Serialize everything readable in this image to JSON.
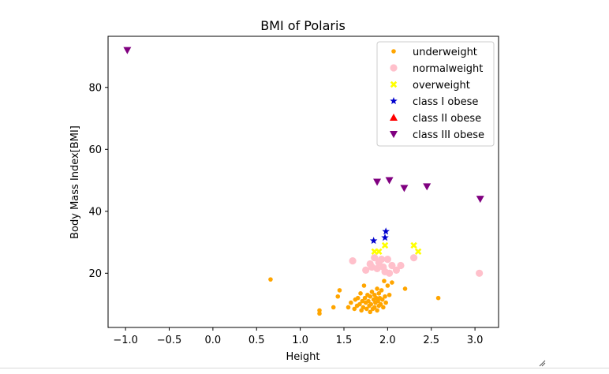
{
  "chart_data": {
    "type": "scatter",
    "title": "BMI of Polaris",
    "xlabel": "Height",
    "ylabel": "Body Mass Index[BMI]",
    "xlim": [
      -1.2,
      3.27
    ],
    "ylim": [
      2.5,
      96.5
    ],
    "xticks": [
      "−1.0",
      "−0.5",
      "0.0",
      "0.5",
      "1.0",
      "1.5",
      "2.0",
      "2.5",
      "3.0"
    ],
    "xtick_values": [
      -1.0,
      -0.5,
      0.0,
      0.5,
      1.0,
      1.5,
      2.0,
      2.5,
      3.0
    ],
    "yticks": [
      "20",
      "40",
      "60",
      "80"
    ],
    "ytick_values": [
      20,
      40,
      60,
      80
    ],
    "grid": false,
    "legend_position": "top-right",
    "series": [
      {
        "name": "underweight",
        "marker": "dot",
        "color": "#ffa500",
        "points": [
          [
            0.66,
            18.0
          ],
          [
            1.22,
            8.0
          ],
          [
            1.22,
            7.0
          ],
          [
            1.38,
            9.0
          ],
          [
            1.43,
            12.5
          ],
          [
            1.45,
            14.5
          ],
          [
            1.55,
            9.0
          ],
          [
            1.58,
            10.5
          ],
          [
            1.62,
            8.5
          ],
          [
            1.63,
            11.5
          ],
          [
            1.65,
            9.5
          ],
          [
            1.66,
            12.0
          ],
          [
            1.68,
            10.0
          ],
          [
            1.69,
            13.5
          ],
          [
            1.7,
            8.0
          ],
          [
            1.71,
            11.0
          ],
          [
            1.72,
            9.0
          ],
          [
            1.73,
            16.0
          ],
          [
            1.74,
            12.0
          ],
          [
            1.75,
            10.5
          ],
          [
            1.76,
            8.5
          ],
          [
            1.77,
            13.0
          ],
          [
            1.78,
            11.0
          ],
          [
            1.79,
            9.5
          ],
          [
            1.8,
            7.5
          ],
          [
            1.8,
            12.5
          ],
          [
            1.81,
            10.0
          ],
          [
            1.82,
            14.0
          ],
          [
            1.83,
            8.5
          ],
          [
            1.84,
            11.5
          ],
          [
            1.85,
            9.0
          ],
          [
            1.85,
            13.0
          ],
          [
            1.86,
            10.5
          ],
          [
            1.87,
            12.0
          ],
          [
            1.88,
            8.0
          ],
          [
            1.88,
            15.0
          ],
          [
            1.89,
            11.0
          ],
          [
            1.9,
            9.5
          ],
          [
            1.9,
            13.5
          ],
          [
            1.91,
            12.0
          ],
          [
            1.92,
            10.0
          ],
          [
            1.93,
            14.5
          ],
          [
            1.94,
            11.5
          ],
          [
            1.95,
            9.0
          ],
          [
            1.96,
            17.5
          ],
          [
            1.97,
            12.5
          ],
          [
            1.98,
            10.5
          ],
          [
            2.0,
            16.0
          ],
          [
            2.02,
            13.0
          ],
          [
            2.05,
            17.0
          ],
          [
            2.2,
            15.0
          ],
          [
            2.58,
            12.0
          ]
        ]
      },
      {
        "name": "normalweight",
        "marker": "circle",
        "color": "#ffc0cb",
        "points": [
          [
            1.6,
            24.0
          ],
          [
            1.75,
            21.0
          ],
          [
            1.8,
            23.0
          ],
          [
            1.82,
            22.0
          ],
          [
            1.85,
            25.0
          ],
          [
            1.88,
            21.5
          ],
          [
            1.9,
            23.5
          ],
          [
            1.93,
            24.5
          ],
          [
            1.95,
            22.0
          ],
          [
            1.97,
            20.5
          ],
          [
            2.0,
            24.5
          ],
          [
            2.02,
            20.0
          ],
          [
            2.05,
            22.5
          ],
          [
            2.1,
            21.0
          ],
          [
            2.15,
            22.5
          ],
          [
            2.3,
            25.0
          ],
          [
            3.05,
            20.0
          ]
        ]
      },
      {
        "name": "overweight",
        "marker": "x",
        "color": "#ffff00",
        "points": [
          [
            1.85,
            27.0
          ],
          [
            1.9,
            27.0
          ],
          [
            1.97,
            29.0
          ],
          [
            2.3,
            29.0
          ],
          [
            2.35,
            27.0
          ]
        ]
      },
      {
        "name": "class I obese",
        "marker": "star",
        "color": "#0000cd",
        "points": [
          [
            1.84,
            30.5
          ],
          [
            1.97,
            31.5
          ],
          [
            1.98,
            33.5
          ]
        ]
      },
      {
        "name": "class II obese",
        "marker": "triangle-up",
        "color": "#ff0000",
        "points": []
      },
      {
        "name": "class III obese",
        "marker": "triangle-down",
        "color": "#800080",
        "points": [
          [
            -0.98,
            92.0
          ],
          [
            1.88,
            49.5
          ],
          [
            2.02,
            50.0
          ],
          [
            2.19,
            47.5
          ],
          [
            2.45,
            48.0
          ],
          [
            3.06,
            44.0
          ]
        ]
      }
    ]
  }
}
